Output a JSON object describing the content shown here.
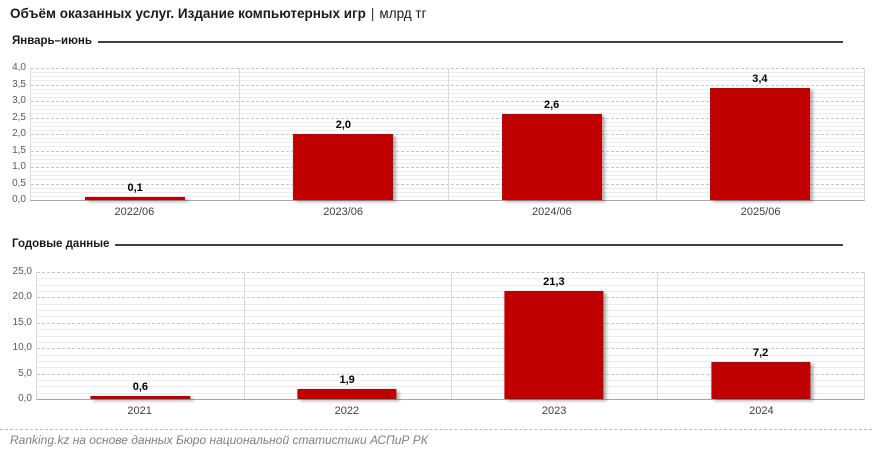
{
  "header": {
    "title": "Объём оказанных услуг. Издание компьютерных игр",
    "separator": "|",
    "unit": "млрд тг"
  },
  "footer": {
    "source": "Ranking.kz на основе данных Бюро национальной статистики АСПиР РК"
  },
  "colors": {
    "bar": "#c00000",
    "grid_major": "#c6c6c6",
    "grid_minor": "#ededed",
    "axis_line": "#a6a6a6",
    "tick_text": "#595959",
    "category_text": "#404040",
    "heading_rule": "#3f3f3f",
    "footer_text": "#7f7f7f"
  },
  "chart_data": [
    {
      "type": "bar",
      "section_label": "Январь–июнь",
      "categories": [
        "2022/06",
        "2023/06",
        "2024/06",
        "2025/06"
      ],
      "values": [
        0.1,
        2.0,
        2.6,
        3.4
      ],
      "value_labels": [
        "0,1",
        "2,0",
        "2,6",
        "3,4"
      ],
      "ylim": [
        0,
        4.0
      ],
      "y_major": 0.5,
      "y_ticks": [
        "0,0",
        "0,5",
        "1,0",
        "1,5",
        "2,0",
        "2,5",
        "3,0",
        "3,5",
        "4,0"
      ],
      "grid": true,
      "legend": false,
      "unit": "млрд тг"
    },
    {
      "type": "bar",
      "section_label": "Годовые данные",
      "categories": [
        "2021",
        "2022",
        "2023",
        "2024"
      ],
      "values": [
        0.6,
        1.9,
        21.3,
        7.2
      ],
      "value_labels": [
        "0,6",
        "1,9",
        "21,3",
        "7,2"
      ],
      "ylim": [
        0,
        25.0
      ],
      "y_major": 5.0,
      "y_ticks": [
        "0,0",
        "5,0",
        "10,0",
        "15,0",
        "20,0",
        "25,0"
      ],
      "grid": true,
      "legend": false,
      "unit": "млрд тг"
    }
  ]
}
